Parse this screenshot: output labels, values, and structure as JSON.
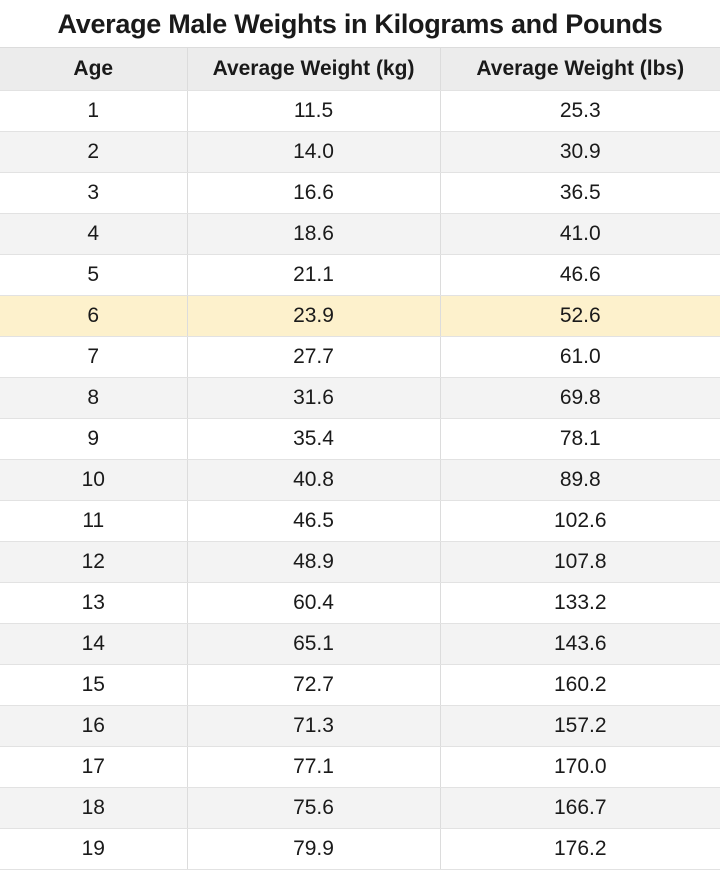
{
  "title": "Average Male Weights in Kilograms and Pounds",
  "columns": [
    "Age",
    "Average Weight (kg)",
    "Average Weight (lbs)"
  ],
  "highlighted_age": "6",
  "colors": {
    "header_bg": "#ececec",
    "alt_row_bg": "#f3f3f3",
    "highlight_bg": "#fdf1cc"
  },
  "rows": [
    [
      "1",
      "11.5",
      "25.3"
    ],
    [
      "2",
      "14.0",
      "30.9"
    ],
    [
      "3",
      "16.6",
      "36.5"
    ],
    [
      "4",
      "18.6",
      "41.0"
    ],
    [
      "5",
      "21.1",
      "46.6"
    ],
    [
      "6",
      "23.9",
      "52.6"
    ],
    [
      "7",
      "27.7",
      "61.0"
    ],
    [
      "8",
      "31.6",
      "69.8"
    ],
    [
      "9",
      "35.4",
      "78.1"
    ],
    [
      "10",
      "40.8",
      "89.8"
    ],
    [
      "11",
      "46.5",
      "102.6"
    ],
    [
      "12",
      "48.9",
      "107.8"
    ],
    [
      "13",
      "60.4",
      "133.2"
    ],
    [
      "14",
      "65.1",
      "143.6"
    ],
    [
      "15",
      "72.7",
      "160.2"
    ],
    [
      "16",
      "71.3",
      "157.2"
    ],
    [
      "17",
      "77.1",
      "170.0"
    ],
    [
      "18",
      "75.6",
      "166.7"
    ],
    [
      "19",
      "79.9",
      "176.2"
    ]
  ]
}
